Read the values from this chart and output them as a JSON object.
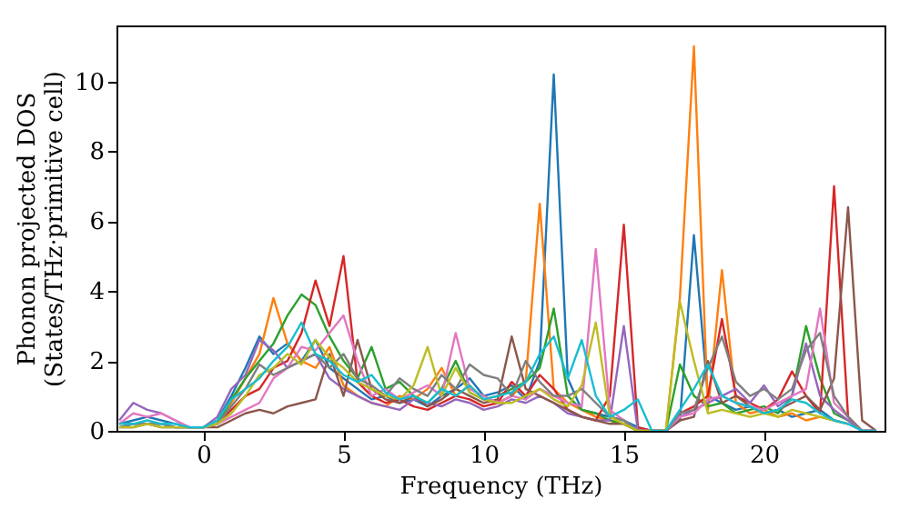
{
  "chart_data": {
    "type": "line",
    "xlabel": "Frequency (THz)",
    "ylabel": "Phonon projected DOS\n(States/THz·primitive cell)",
    "xlim": [
      -3.1,
      24.3
    ],
    "ylim": [
      0,
      11.6
    ],
    "xticks": [
      0,
      5,
      10,
      15,
      20
    ],
    "yticks": [
      0,
      2,
      4,
      6,
      8,
      10
    ],
    "grid": false,
    "legend": false,
    "x": [
      -3,
      -2.5,
      -2,
      -1.5,
      -1,
      -0.5,
      0,
      0.5,
      1,
      1.5,
      2,
      2.5,
      3,
      3.5,
      4,
      4.5,
      5,
      5.5,
      6,
      6.5,
      7,
      7.5,
      8,
      8.5,
      9,
      9.5,
      10,
      10.5,
      11,
      11.5,
      12,
      12.5,
      13,
      13.5,
      14,
      14.5,
      15,
      15.5,
      16,
      16.5,
      17,
      17.5,
      18,
      18.5,
      19,
      19.5,
      20,
      20.5,
      21,
      21.5,
      22,
      22.5,
      23,
      23.5,
      24
    ],
    "series": [
      {
        "color": "#1f77b4",
        "values": [
          0.2,
          0.3,
          0.4,
          0.3,
          0.2,
          0.1,
          0.1,
          0.3,
          1.0,
          1.8,
          2.7,
          2.2,
          2.5,
          2.0,
          2.6,
          1.8,
          1.5,
          1.2,
          0.9,
          1.0,
          0.8,
          0.9,
          0.7,
          1.0,
          1.2,
          1.5,
          1.0,
          1.1,
          1.3,
          0.9,
          2.0,
          10.2,
          1.5,
          0.6,
          0.5,
          0.4,
          0.3,
          0.1,
          0,
          0,
          0.3,
          5.6,
          1.0,
          0.8,
          0.6,
          0.7,
          0.5,
          0.6,
          0.4,
          0.5,
          0.6,
          0.3,
          0.2,
          null,
          null
        ]
      },
      {
        "color": "#ff7f0e",
        "values": [
          null,
          null,
          null,
          null,
          null,
          null,
          null,
          0.2,
          0.8,
          1.5,
          2.2,
          3.8,
          2.5,
          2.0,
          1.8,
          2.4,
          1.3,
          1.0,
          0.8,
          0.7,
          1.0,
          0.9,
          1.2,
          1.8,
          1.0,
          1.3,
          0.9,
          0.8,
          1.0,
          1.4,
          6.5,
          1.2,
          0.8,
          0.6,
          0.4,
          0.3,
          0.2,
          0,
          0,
          0,
          3.8,
          11.0,
          0.6,
          4.6,
          0.8,
          0.5,
          0.6,
          0.4,
          0.5,
          0.3,
          0.4,
          0.3,
          0.2,
          null,
          null
        ]
      },
      {
        "color": "#2ca02c",
        "values": [
          0.1,
          0.2,
          0.2,
          0.2,
          0.1,
          0.1,
          0.1,
          0.2,
          0.9,
          1.5,
          2.0,
          2.5,
          3.3,
          3.9,
          3.6,
          2.7,
          2.0,
          1.5,
          2.4,
          1.2,
          1.4,
          1.0,
          0.8,
          1.2,
          2.0,
          1.1,
          0.9,
          1.0,
          1.2,
          1.4,
          1.8,
          3.5,
          1.0,
          0.6,
          0.5,
          0.3,
          0.2,
          0,
          0,
          0,
          1.9,
          1.0,
          0.7,
          0.8,
          0.5,
          0.6,
          0.7,
          0.5,
          1.0,
          3.0,
          1.5,
          0.5,
          0.3,
          0,
          0
        ]
      },
      {
        "color": "#d62728",
        "values": [
          null,
          null,
          null,
          null,
          null,
          null,
          null,
          0.2,
          0.6,
          1.0,
          1.2,
          1.8,
          2.0,
          2.8,
          4.3,
          3.0,
          5.0,
          1.4,
          1.0,
          0.8,
          0.9,
          0.7,
          0.6,
          0.8,
          1.0,
          0.9,
          0.7,
          0.8,
          1.4,
          1.0,
          1.6,
          1.2,
          0.6,
          0.4,
          0.3,
          1.0,
          5.9,
          0.1,
          0,
          0,
          0.5,
          0.7,
          1.0,
          3.2,
          1.0,
          0.8,
          0.6,
          0.9,
          1.7,
          1.0,
          0.5,
          7.0,
          0.4,
          0,
          0
        ]
      },
      {
        "color": "#9467bd",
        "values": [
          0.3,
          0.8,
          0.6,
          0.5,
          0.3,
          0.1,
          0.1,
          0.4,
          1.2,
          1.6,
          2.6,
          2.3,
          1.8,
          2.0,
          2.2,
          1.5,
          1.2,
          1.0,
          0.8,
          0.7,
          0.6,
          0.9,
          0.8,
          0.7,
          0.9,
          0.8,
          0.6,
          0.7,
          0.9,
          0.8,
          1.0,
          0.8,
          0.5,
          0.4,
          0.3,
          0.3,
          3.0,
          0,
          0,
          0,
          0.4,
          0.6,
          0.8,
          1.0,
          1.2,
          0.8,
          1.3,
          0.7,
          1.0,
          2.5,
          1.0,
          0.6,
          0.3,
          0,
          0
        ]
      },
      {
        "color": "#8c564b",
        "values": [
          0.1,
          0.1,
          0.2,
          0.1,
          0.1,
          0.1,
          0.1,
          0.1,
          0.3,
          0.5,
          0.6,
          0.5,
          0.7,
          0.8,
          0.9,
          2.2,
          1.0,
          2.6,
          1.2,
          0.9,
          0.8,
          1.0,
          0.7,
          0.9,
          1.2,
          1.0,
          0.8,
          0.9,
          2.7,
          1.2,
          1.0,
          0.8,
          0.6,
          0.4,
          0.3,
          0.2,
          0.2,
          0,
          0,
          0,
          0.3,
          0.4,
          2.0,
          0.8,
          1.0,
          0.7,
          0.5,
          0.6,
          0.8,
          1.0,
          0.6,
          1.5,
          6.4,
          0.3,
          0
        ]
      },
      {
        "color": "#e377c2",
        "values": [
          0.2,
          0.5,
          0.4,
          0.5,
          0.3,
          0.1,
          0.1,
          0.2,
          0.4,
          0.6,
          0.8,
          1.5,
          1.8,
          2.4,
          2.3,
          2.8,
          3.3,
          2.0,
          1.0,
          1.2,
          0.9,
          1.1,
          1.3,
          1.0,
          2.8,
          1.2,
          1.0,
          0.8,
          1.0,
          0.9,
          1.2,
          1.0,
          0.8,
          0.7,
          5.2,
          0.6,
          0.3,
          0,
          0,
          0,
          0.4,
          0.5,
          0.9,
          1.0,
          0.8,
          0.7,
          0.6,
          0.8,
          1.0,
          1.2,
          3.5,
          0.8,
          0.4,
          0,
          0
        ]
      },
      {
        "color": "#7f7f7f",
        "values": [
          0.1,
          0.2,
          0.2,
          0.2,
          0.1,
          0.1,
          0.1,
          0.2,
          0.7,
          1.2,
          1.9,
          1.6,
          1.8,
          2.0,
          2.2,
          1.8,
          2.2,
          1.5,
          1.3,
          1.0,
          1.5,
          1.2,
          1.0,
          1.6,
          1.2,
          1.9,
          1.6,
          1.5,
          1.0,
          2.0,
          1.4,
          1.0,
          1.0,
          1.2,
          0.8,
          0.4,
          0.3,
          0,
          0,
          0,
          0.5,
          0.6,
          1.8,
          2.7,
          1.4,
          1.0,
          1.2,
          0.9,
          1.2,
          2.3,
          2.8,
          1.0,
          0.4,
          0,
          0
        ]
      },
      {
        "color": "#bcbd22",
        "values": [
          0.1,
          0.1,
          0.2,
          0.1,
          0.1,
          0.1,
          0.1,
          0.2,
          0.5,
          1.0,
          1.6,
          1.8,
          2.2,
          1.9,
          2.6,
          2.1,
          1.8,
          1.4,
          1.2,
          1.0,
          0.9,
          1.3,
          2.4,
          1.0,
          1.8,
          1.1,
          0.9,
          0.8,
          0.8,
          1.0,
          1.2,
          0.9,
          0.7,
          1.3,
          3.1,
          0.4,
          0.2,
          0,
          0,
          0,
          3.7,
          2.0,
          0.5,
          0.6,
          0.5,
          0.4,
          0.5,
          0.4,
          0.6,
          0.5,
          0.4,
          0.3,
          0.2,
          null,
          null
        ]
      },
      {
        "color": "#17becf",
        "values": [
          0.2,
          0.2,
          0.3,
          0.2,
          0.2,
          0.1,
          0.1,
          0.3,
          0.9,
          1.2,
          1.5,
          2.0,
          2.4,
          3.1,
          2.2,
          2.0,
          1.6,
          1.4,
          1.6,
          1.1,
          0.9,
          1.0,
          0.8,
          1.2,
          1.0,
          1.3,
          0.9,
          1.0,
          1.1,
          1.4,
          2.2,
          2.7,
          1.5,
          2.6,
          1.0,
          0.4,
          0.6,
          0.9,
          0,
          0,
          0.6,
          1.2,
          1.9,
          1.0,
          0.8,
          0.7,
          0.5,
          0.6,
          0.9,
          0.8,
          0.5,
          0.3,
          0.2,
          0,
          0
        ]
      }
    ]
  }
}
